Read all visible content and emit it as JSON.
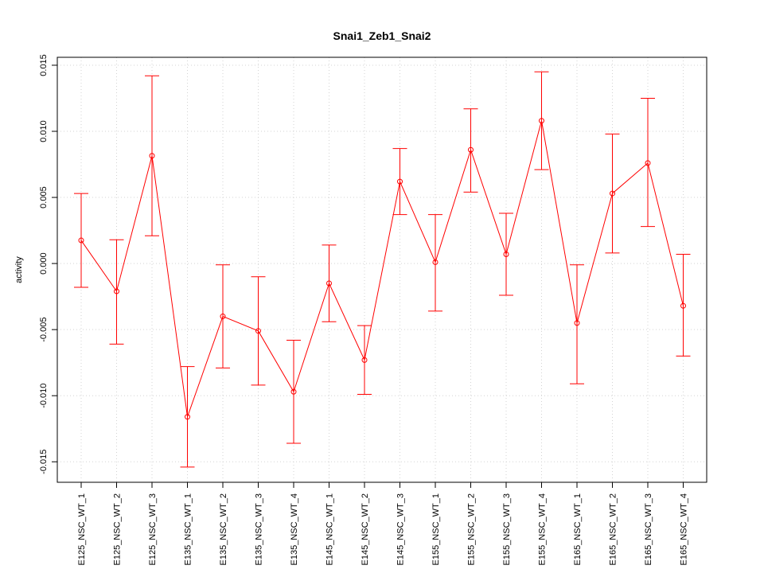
{
  "chart_data": {
    "type": "line",
    "title": "Snai1_Zeb1_Snai2",
    "xlabel": "",
    "ylabel": "activity",
    "categories": [
      "E125_NSC_WT_1",
      "E125_NSC_WT_2",
      "E125_NSC_WT_3",
      "E135_NSC_WT_1",
      "E135_NSC_WT_2",
      "E135_NSC_WT_3",
      "E135_NSC_WT_4",
      "E145_NSC_WT_1",
      "E145_NSC_WT_2",
      "E145_NSC_WT_3",
      "E155_NSC_WT_1",
      "E155_NSC_WT_2",
      "E155_NSC_WT_3",
      "E155_NSC_WT_4",
      "E165_NSC_WT_1",
      "E165_NSC_WT_2",
      "E165_NSC_WT_3",
      "E165_NSC_WT_4"
    ],
    "series": [
      {
        "values": [
          0.00175,
          -0.0021,
          0.00815,
          -0.0116,
          -0.004,
          -0.0051,
          -0.0097,
          -0.0015,
          -0.0073,
          0.0062,
          0.0001,
          0.0086,
          0.0007,
          0.0108,
          -0.0045,
          0.0053,
          0.0076,
          -0.0032
        ],
        "lower": [
          -0.0018,
          -0.0061,
          0.0021,
          -0.0154,
          -0.0079,
          -0.0092,
          -0.0136,
          -0.0044,
          -0.0099,
          0.0037,
          -0.0036,
          0.0054,
          -0.0024,
          0.0071,
          -0.0091,
          0.0008,
          0.0028,
          -0.007
        ],
        "upper": [
          0.0053,
          0.0018,
          0.0142,
          -0.0078,
          -0.0001,
          -0.001,
          -0.0058,
          0.0014,
          -0.0047,
          0.0087,
          0.0037,
          0.0117,
          0.0038,
          0.0145,
          -0.0001,
          0.0098,
          0.0125,
          0.0007
        ]
      }
    ],
    "yticks": [
      -0.015,
      -0.01,
      -0.005,
      0.0,
      0.005,
      0.01,
      0.015
    ],
    "ytick_labels": [
      "-0.015",
      "-0.010",
      "-0.005",
      "0.000",
      "0.005",
      "0.010",
      "0.015"
    ],
    "ylim": [
      -0.01655,
      0.0156
    ],
    "grid": true,
    "colors": {
      "series": "#ff0000",
      "grid": "#d3d3d3",
      "axis": "#000000"
    }
  }
}
